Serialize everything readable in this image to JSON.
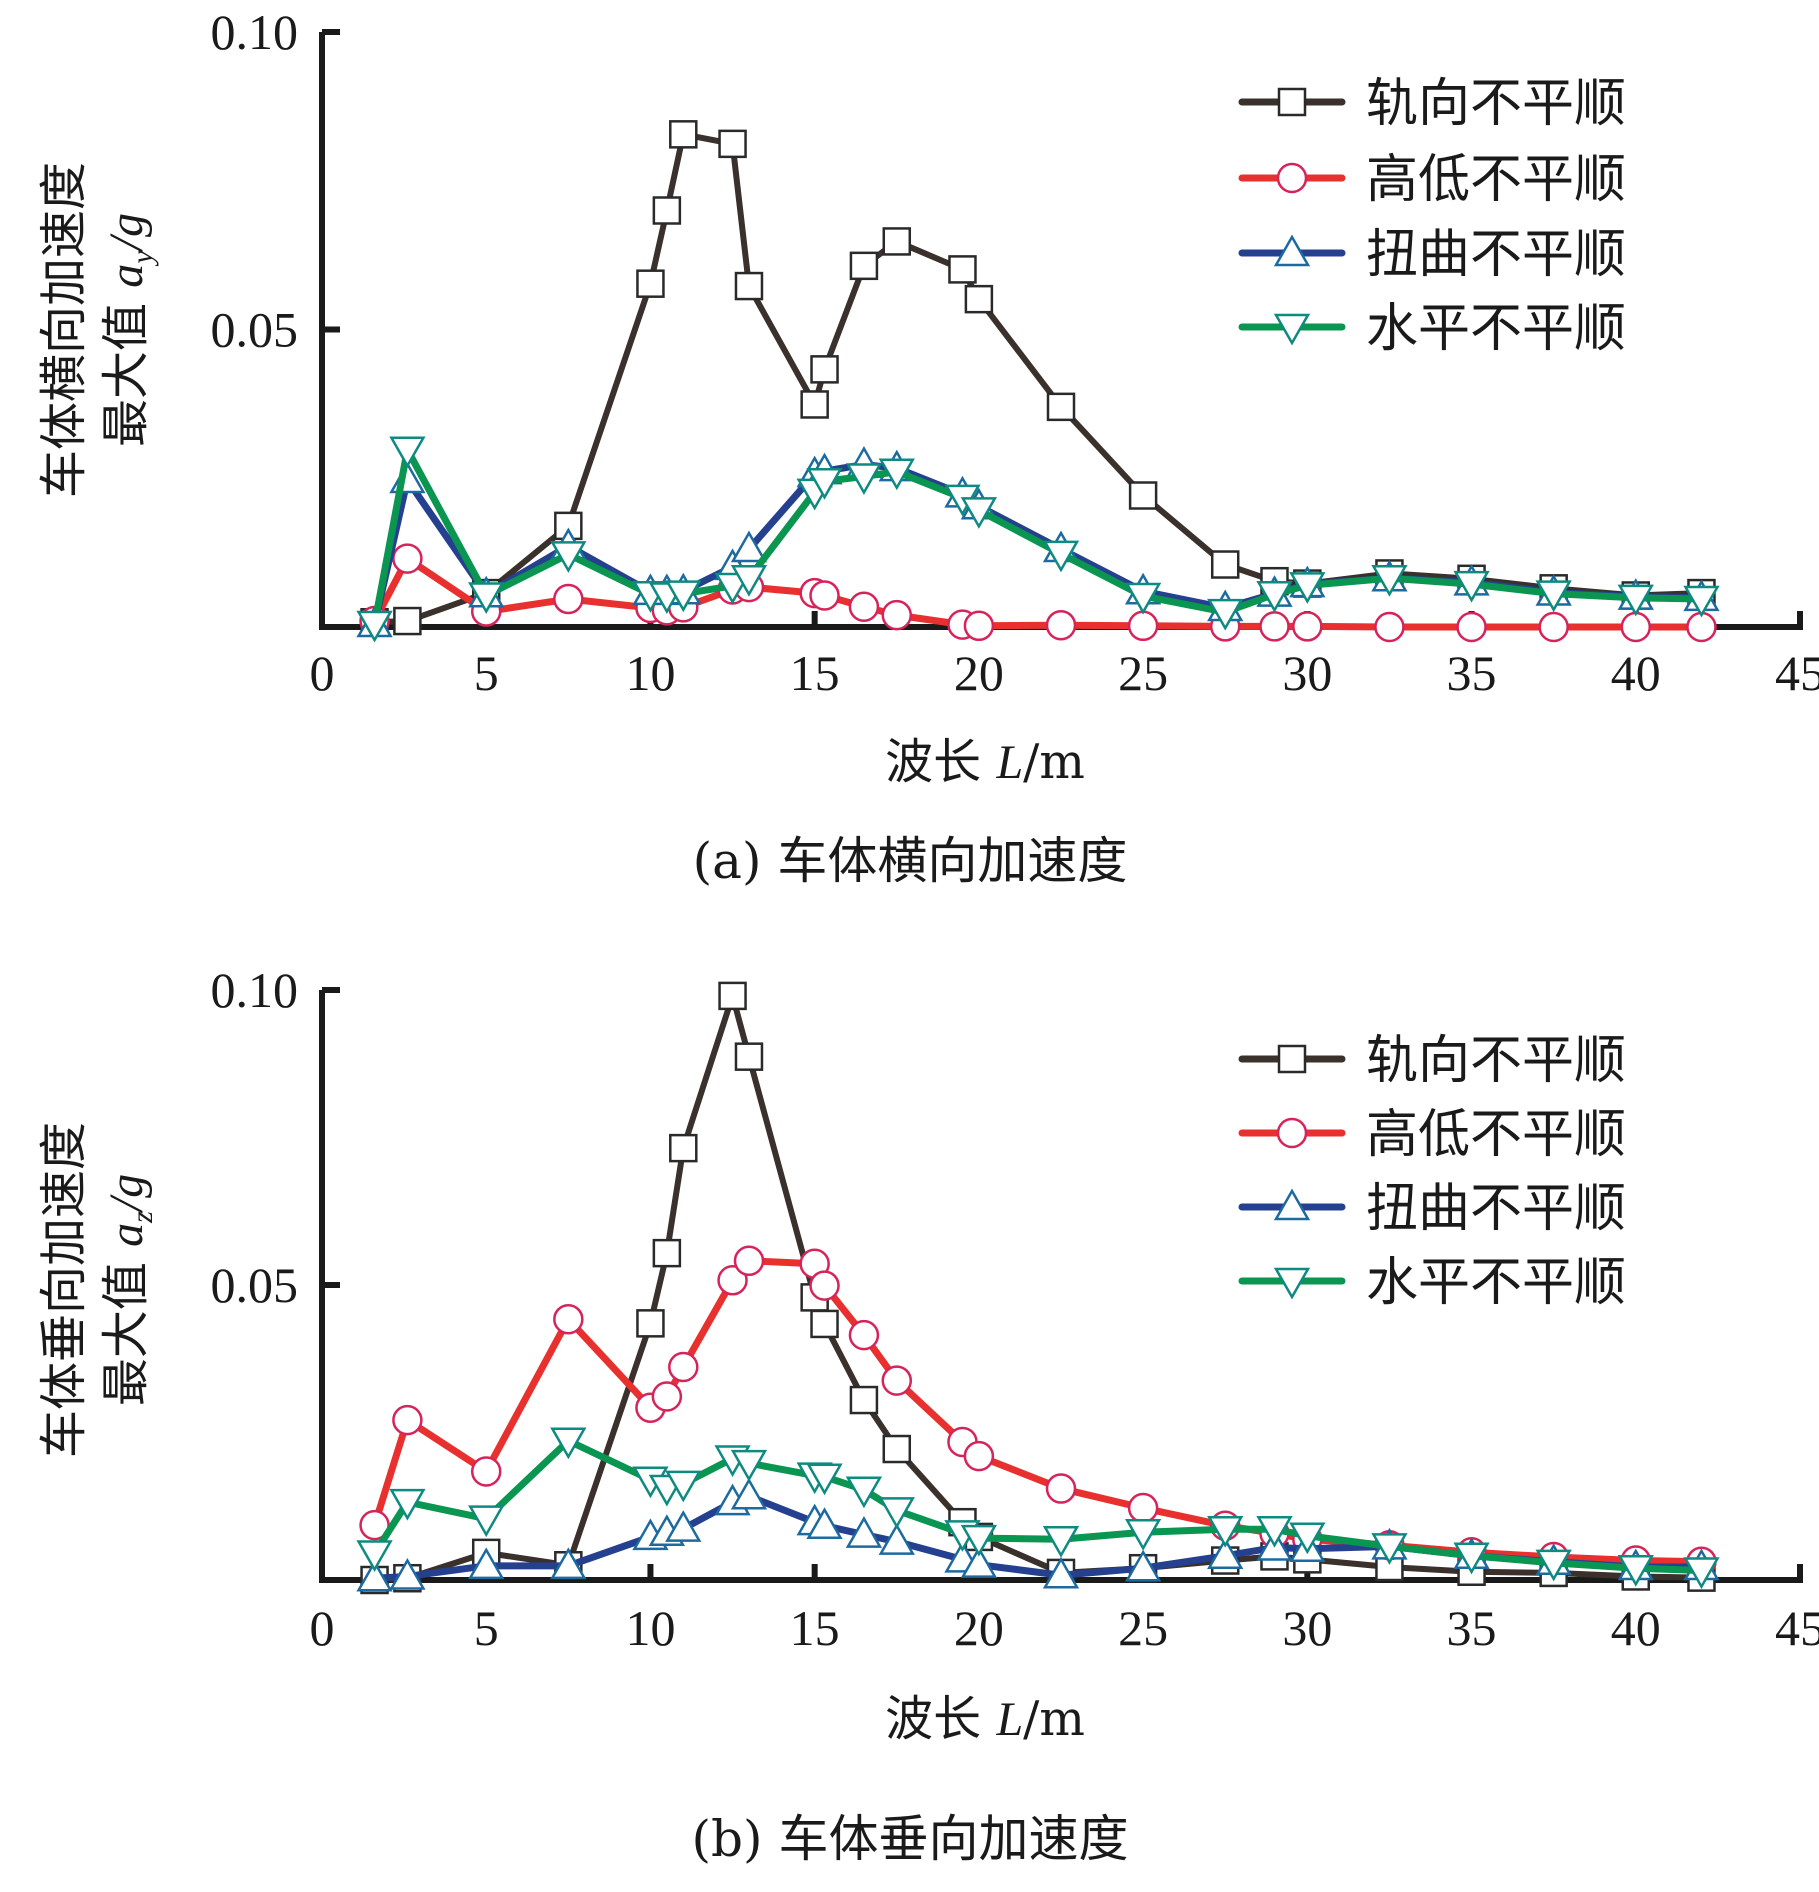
{
  "colors": {
    "axis": "#1a1a1a",
    "series_line": [
      "#3a302c",
      "#e8312f",
      "#24408f",
      "#0a9550"
    ],
    "series_marker": [
      "#2a2a2a",
      "#d6245a",
      "#1c6aa0",
      "#0e8a80"
    ]
  },
  "chart_data": [
    {
      "type": "line",
      "caption": "(a) 车体横向加速度",
      "xlabel": {
        "prefix": "波长 ",
        "var": "L",
        "suffix": "/m"
      },
      "ylabel": {
        "line1": "车体横向加速度",
        "line2_prefix": "最大值 ",
        "var": "a",
        "sub": "y",
        "suffix": "/g"
      },
      "xlim": [
        0,
        45
      ],
      "ylim": [
        0,
        0.1
      ],
      "xticks": [
        "0",
        "5",
        "10",
        "15",
        "20",
        "25",
        "30",
        "35",
        "40",
        "45"
      ],
      "xtick_values": [
        0,
        5,
        10,
        15,
        20,
        25,
        30,
        35,
        40,
        45
      ],
      "yticks": [
        "0.05",
        "0.10"
      ],
      "ytick_values": [
        0.05,
        0.1
      ],
      "legend_position": "top-right",
      "x": [
        1.6,
        2.6,
        5,
        7.5,
        10,
        10.5,
        11,
        12.5,
        13,
        15,
        15.3,
        16.5,
        17.5,
        19.5,
        20,
        22.5,
        25,
        27.5,
        29,
        30,
        32.5,
        35,
        37.5,
        40,
        42
      ],
      "series": [
        {
          "name": "轨向不平顺",
          "marker": "square",
          "values": [
            0.0008,
            0.001,
            0.0057,
            0.017,
            0.0577,
            0.07,
            0.0828,
            0.0812,
            0.0573,
            0.0374,
            0.0433,
            0.0607,
            0.0648,
            0.0601,
            0.0551,
            0.037,
            0.0221,
            0.0105,
            0.0077,
            0.0073,
            0.009,
            0.0081,
            0.0065,
            0.0053,
            0.0057
          ]
        },
        {
          "name": "高低不平顺",
          "marker": "circle",
          "values": [
            0.001,
            0.0115,
            0.0026,
            0.0047,
            0.0032,
            0.0028,
            0.0033,
            0.0063,
            0.0067,
            0.0057,
            0.0053,
            0.0034,
            0.002,
            0.0004,
            0.0002,
            0.0003,
            0.0002,
            0.0001,
            0.0001,
            0.0001,
            0.0,
            0.0,
            0.0,
            0.0,
            0.0
          ]
        },
        {
          "name": "扭曲不平顺",
          "marker": "triangle-up",
          "values": [
            0.0005,
            0.0247,
            0.0055,
            0.0136,
            0.0059,
            0.0059,
            0.006,
            0.0101,
            0.0131,
            0.0257,
            0.0262,
            0.0273,
            0.0267,
            0.0223,
            0.0203,
            0.0131,
            0.006,
            0.0032,
            0.0056,
            0.0072,
            0.0082,
            0.0075,
            0.0058,
            0.0051,
            0.0049
          ]
        },
        {
          "name": "水平不平顺",
          "marker": "triangle-down",
          "values": [
            0.0005,
            0.0298,
            0.0053,
            0.0122,
            0.0055,
            0.0053,
            0.0056,
            0.0069,
            0.0082,
            0.0227,
            0.0245,
            0.0253,
            0.0261,
            0.0217,
            0.0196,
            0.0123,
            0.0052,
            0.0025,
            0.0055,
            0.007,
            0.0082,
            0.0072,
            0.0056,
            0.0049,
            0.0047
          ]
        }
      ]
    },
    {
      "type": "line",
      "caption": "(b) 车体垂向加速度",
      "xlabel": {
        "prefix": "波长 ",
        "var": "L",
        "suffix": "/m"
      },
      "ylabel": {
        "line1": "车体垂向加速度",
        "line2_prefix": "最大值 ",
        "var": "a",
        "sub": "z",
        "suffix": "/g"
      },
      "xlim": [
        0,
        45
      ],
      "ylim": [
        0,
        0.1
      ],
      "xticks": [
        "0",
        "5",
        "10",
        "15",
        "20",
        "25",
        "30",
        "35",
        "40",
        "45"
      ],
      "xtick_values": [
        0,
        5,
        10,
        15,
        20,
        25,
        30,
        35,
        40,
        45
      ],
      "yticks": [
        "0.05",
        "0.10"
      ],
      "ytick_values": [
        0.05,
        0.1
      ],
      "legend_position": "top-right",
      "x": [
        1.6,
        2.6,
        5,
        7.5,
        10,
        10.5,
        11,
        12.5,
        13,
        15,
        15.3,
        16.5,
        17.5,
        19.5,
        20,
        22.5,
        25,
        27.5,
        29,
        30,
        32.5,
        35,
        37.5,
        40,
        42
      ],
      "series": [
        {
          "name": "轨向不平顺",
          "marker": "square",
          "values": [
            0.0,
            0.0003,
            0.0046,
            0.0025,
            0.0435,
            0.0554,
            0.0732,
            0.099,
            0.0887,
            0.0479,
            0.0434,
            0.0305,
            0.0222,
            0.0098,
            0.0073,
            0.0012,
            0.002,
            0.0033,
            0.004,
            0.0035,
            0.0022,
            0.0014,
            0.0012,
            0.0006,
            0.0004
          ]
        },
        {
          "name": "高低不平顺",
          "marker": "circle",
          "values": [
            0.0093,
            0.0271,
            0.0184,
            0.0442,
            0.0292,
            0.0311,
            0.0361,
            0.0508,
            0.0541,
            0.0536,
            0.0499,
            0.0415,
            0.0338,
            0.0234,
            0.021,
            0.0155,
            0.0122,
            0.0092,
            0.0079,
            0.0069,
            0.0059,
            0.0047,
            0.0039,
            0.0033,
            0.0031
          ]
        },
        {
          "name": "扭曲不平顺",
          "marker": "triangle-up",
          "values": [
            0.0003,
            0.0006,
            0.0024,
            0.0024,
            0.0073,
            0.008,
            0.0087,
            0.0132,
            0.0142,
            0.0098,
            0.0092,
            0.0077,
            0.0065,
            0.0035,
            0.0026,
            0.0008,
            0.002,
            0.0041,
            0.0055,
            0.0053,
            0.0057,
            0.0041,
            0.0031,
            0.0022,
            0.0022
          ]
        },
        {
          "name": "水平不平顺",
          "marker": "triangle-down",
          "values": [
            0.0045,
            0.0132,
            0.0104,
            0.0236,
            0.017,
            0.0156,
            0.0163,
            0.0206,
            0.0198,
            0.0177,
            0.0175,
            0.0153,
            0.0118,
            0.0079,
            0.0071,
            0.0069,
            0.0081,
            0.0086,
            0.0086,
            0.0075,
            0.0057,
            0.0041,
            0.0029,
            0.002,
            0.0016
          ]
        }
      ]
    }
  ]
}
